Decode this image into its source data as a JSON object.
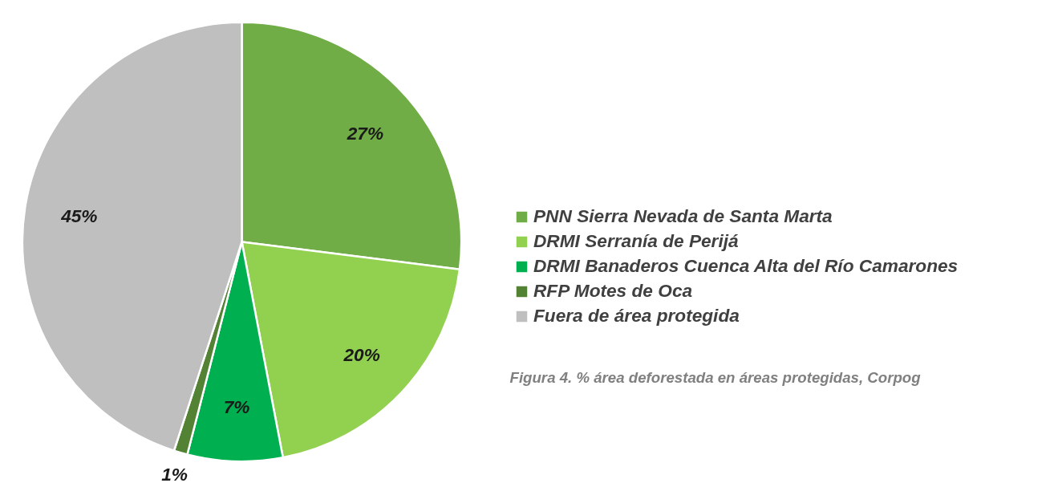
{
  "chart_data": {
    "type": "pie",
    "categories": [
      "PNN Sierra Nevada de Santa Marta",
      "DRMI Serranía de Perijá",
      "DRMI Banaderos Cuenca Alta del Río Camarones",
      "RFP Motes de Oca",
      "Fuera de área protegida"
    ],
    "values": [
      27,
      20,
      7,
      1,
      45
    ],
    "colors": [
      "#70ad47",
      "#92d050",
      "#00b050",
      "#548235",
      "#bfbfbf"
    ],
    "value_labels": [
      "27%",
      "20%",
      "7%",
      "1%",
      "45%"
    ],
    "legend": "right",
    "annotations": [
      "Figura 4. % área deforestada en áreas protegidas, Corpog"
    ]
  }
}
